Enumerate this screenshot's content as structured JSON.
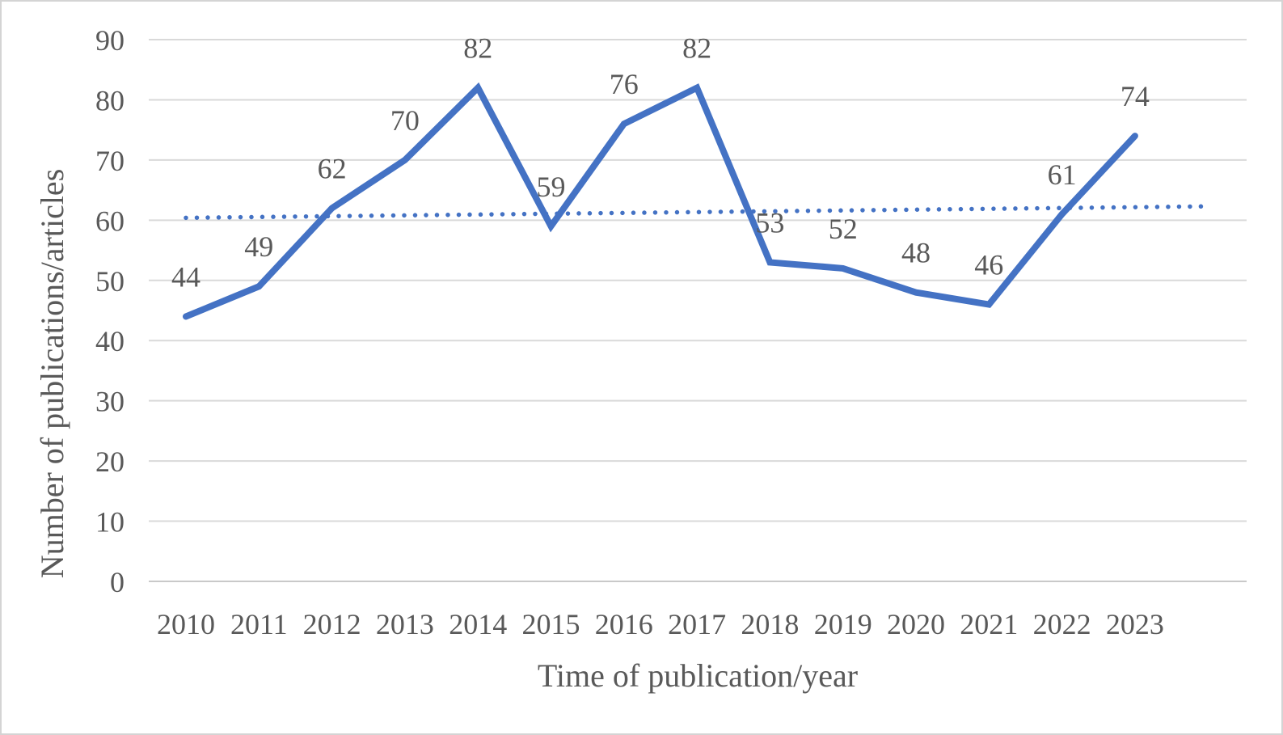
{
  "figure": {
    "background": "#ffffff",
    "border_color": "#d4d4d4"
  },
  "chart_data": {
    "type": "line",
    "title": "",
    "xlabel": "Time of publication/year",
    "ylabel": "Number of publications/articles",
    "categories": [
      "2010",
      "2011",
      "2012",
      "2013",
      "2014",
      "2015",
      "2016",
      "2017",
      "2018",
      "2019",
      "2020",
      "2021",
      "2022",
      "2023"
    ],
    "values": [
      44,
      49,
      62,
      70,
      82,
      59,
      76,
      82,
      53,
      52,
      48,
      46,
      61,
      74
    ],
    "data_labels": [
      "44",
      "49",
      "62",
      "70",
      "82",
      "59",
      "76",
      "82",
      "53",
      "52",
      "48",
      "46",
      "61",
      "74"
    ],
    "ylim": [
      0,
      90
    ],
    "yticks": [
      "0",
      "10",
      "20",
      "30",
      "40",
      "50",
      "60",
      "70",
      "80",
      "90"
    ],
    "grid": true,
    "legend": "none",
    "series_color": "#4472C4",
    "trendline": {
      "style": "dotted",
      "color": "#4472C4",
      "start_value": 60.4,
      "end_value": 62.3,
      "forecast_forward_periods": 1
    },
    "gridline_color": "#D9D9D9",
    "axis_line_color": "#C9C9C9",
    "text_color": "#595959"
  }
}
